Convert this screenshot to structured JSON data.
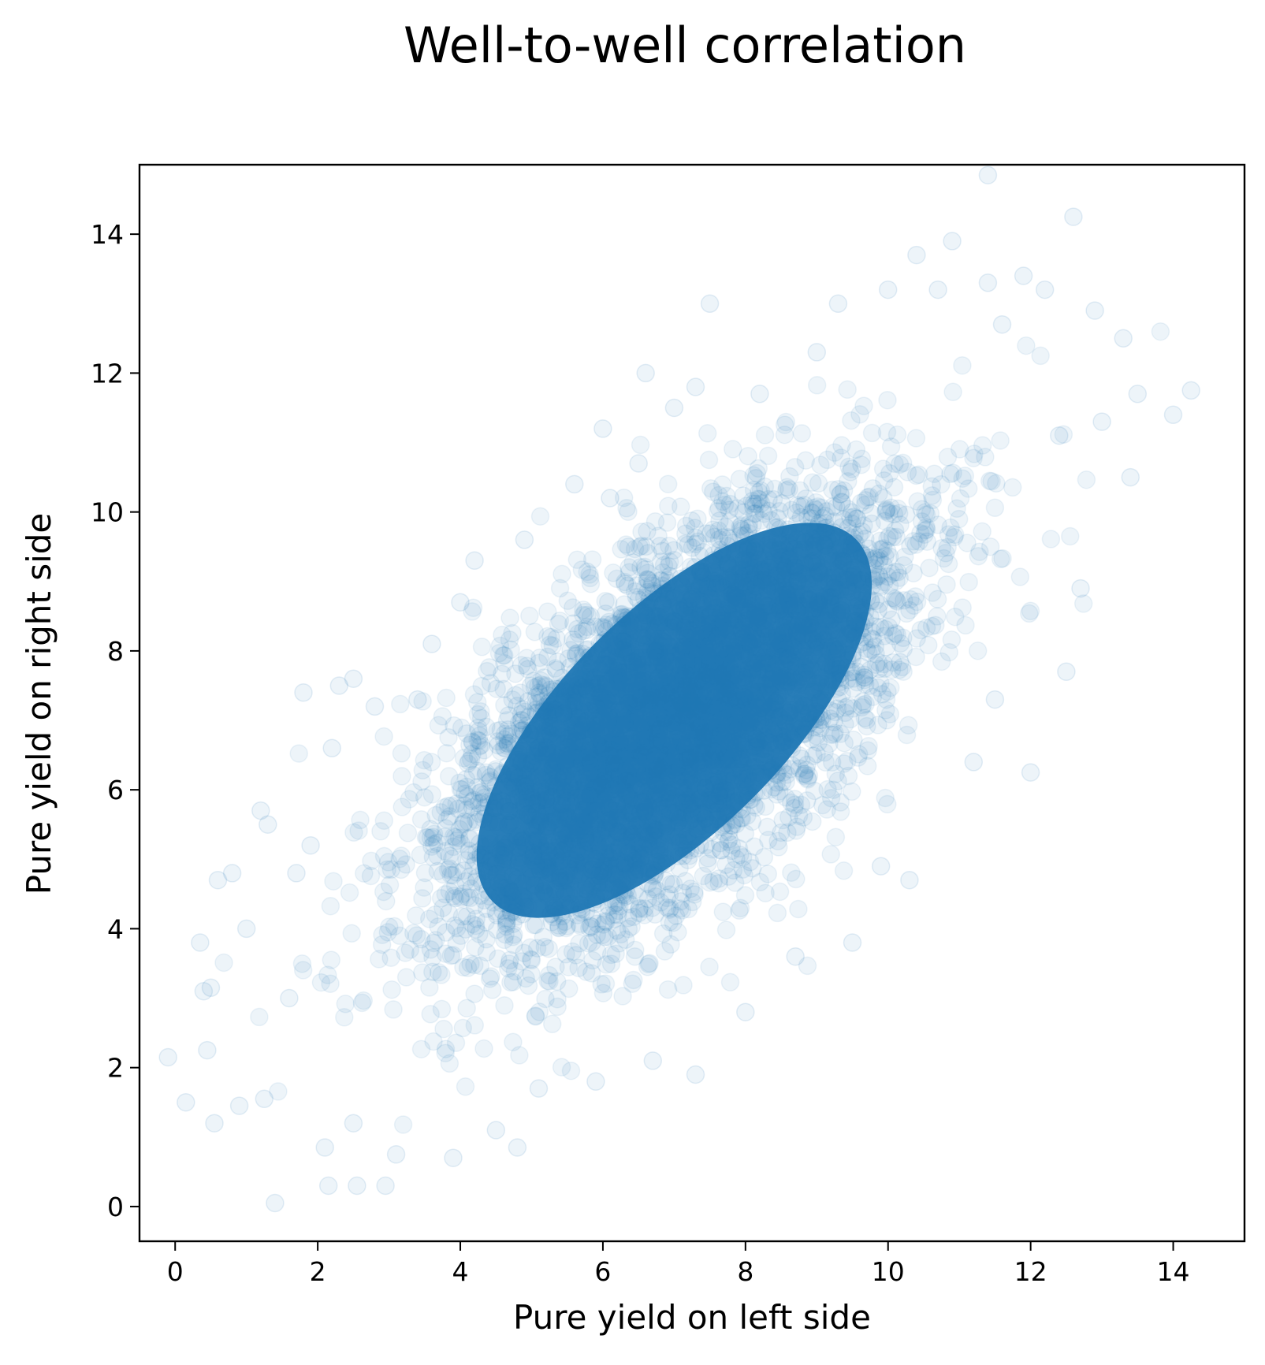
{
  "chart_data": {
    "type": "scatter",
    "title": "Well-to-well correlation",
    "xlabel": "Pure yield on left side",
    "ylabel": "Pure yield on right side",
    "xlim": [
      -0.5,
      15
    ],
    "ylim": [
      -0.5,
      15
    ],
    "xticks": [
      0,
      2,
      4,
      6,
      8,
      10,
      12,
      14
    ],
    "yticks": [
      0,
      2,
      4,
      6,
      8,
      10,
      12,
      14
    ],
    "grid": false,
    "legend": "none",
    "color": "#1f77b4",
    "marker_alpha": 0.08,
    "dense_core": {
      "center": [
        7.0,
        7.0
      ],
      "major_axis_direction": [
        1,
        1
      ],
      "note": "dense blue elliptical cloud from about (4,3) to (10,10)"
    },
    "points": [
      [
        -0.1,
        2.15
      ],
      [
        0.15,
        1.5
      ],
      [
        0.35,
        3.8
      ],
      [
        0.4,
        3.1
      ],
      [
        0.45,
        2.25
      ],
      [
        0.5,
        3.15
      ],
      [
        0.55,
        1.2
      ],
      [
        0.6,
        4.7
      ],
      [
        0.8,
        4.8
      ],
      [
        0.9,
        1.45
      ],
      [
        1.0,
        4.0
      ],
      [
        1.2,
        5.7
      ],
      [
        1.25,
        1.55
      ],
      [
        1.3,
        5.5
      ],
      [
        1.4,
        0.05
      ],
      [
        1.6,
        3.0
      ],
      [
        1.7,
        4.8
      ],
      [
        1.8,
        7.4
      ],
      [
        1.9,
        5.2
      ],
      [
        2.1,
        0.85
      ],
      [
        2.15,
        0.3
      ],
      [
        2.2,
        6.6
      ],
      [
        2.3,
        7.5
      ],
      [
        2.5,
        7.6
      ],
      [
        2.55,
        0.3
      ],
      [
        2.5,
        1.2
      ],
      [
        2.8,
        7.2
      ],
      [
        2.95,
        0.3
      ],
      [
        3.1,
        0.75
      ],
      [
        3.4,
        7.3
      ],
      [
        3.6,
        8.1
      ],
      [
        3.9,
        0.7
      ],
      [
        4.0,
        8.7
      ],
      [
        4.2,
        9.3
      ],
      [
        4.5,
        1.1
      ],
      [
        4.8,
        0.85
      ],
      [
        4.9,
        9.6
      ],
      [
        5.1,
        1.7
      ],
      [
        5.6,
        10.4
      ],
      [
        5.9,
        1.8
      ],
      [
        6.0,
        11.2
      ],
      [
        6.1,
        10.2
      ],
      [
        6.5,
        10.7
      ],
      [
        6.6,
        12.0
      ],
      [
        6.7,
        2.1
      ],
      [
        7.0,
        11.5
      ],
      [
        7.3,
        11.8
      ],
      [
        7.3,
        1.9
      ],
      [
        7.5,
        13.0
      ],
      [
        8.0,
        2.8
      ],
      [
        8.2,
        11.7
      ],
      [
        8.7,
        3.6
      ],
      [
        9.0,
        12.3
      ],
      [
        9.3,
        13.0
      ],
      [
        9.5,
        3.8
      ],
      [
        9.9,
        4.9
      ],
      [
        10.0,
        13.2
      ],
      [
        10.3,
        4.7
      ],
      [
        10.4,
        13.7
      ],
      [
        10.7,
        13.2
      ],
      [
        10.9,
        13.9
      ],
      [
        11.2,
        6.4
      ],
      [
        11.4,
        13.3
      ],
      [
        11.4,
        14.85
      ],
      [
        11.5,
        7.3
      ],
      [
        11.6,
        12.7
      ],
      [
        11.9,
        13.4
      ],
      [
        12.0,
        6.25
      ],
      [
        12.2,
        13.2
      ],
      [
        12.4,
        11.1
      ],
      [
        12.5,
        7.7
      ],
      [
        12.6,
        14.25
      ],
      [
        12.7,
        8.9
      ],
      [
        12.9,
        12.9
      ],
      [
        13.0,
        11.3
      ],
      [
        13.3,
        12.5
      ],
      [
        13.4,
        10.5
      ],
      [
        13.5,
        11.7
      ],
      [
        14.0,
        11.4
      ],
      [
        14.25,
        11.75
      ]
    ]
  }
}
